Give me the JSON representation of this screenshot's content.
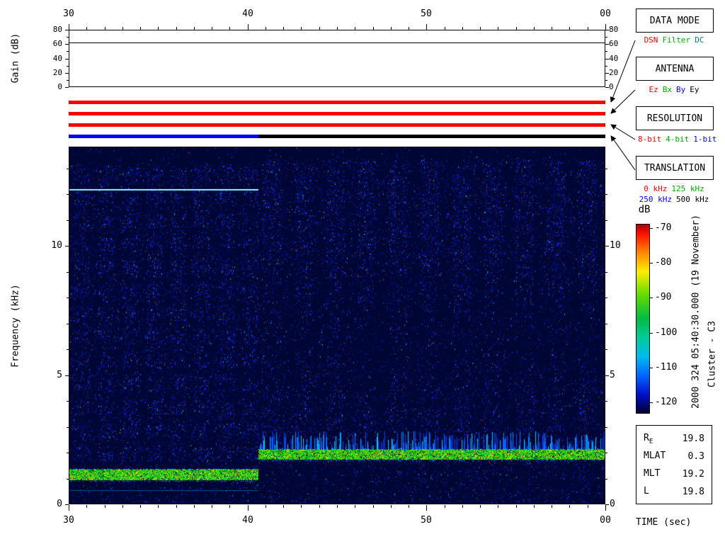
{
  "gain_panel": {
    "ylabel": "Gain (dB)",
    "ticks": [
      0,
      20,
      40,
      60,
      80
    ],
    "minor_ticks": [
      10,
      30,
      50,
      70
    ],
    "range": [
      0,
      80
    ],
    "trace_value_db": 62
  },
  "time_axis": {
    "xlabel": "TIME (sec)",
    "labels": [
      "30",
      "40",
      "50",
      "00"
    ],
    "minor_ticks_per_interval": 10
  },
  "freq_axis": {
    "ylabel": "Frequency (kHz)",
    "major_ticks": [
      0,
      5,
      10
    ],
    "minor_step_khz": 1,
    "range": [
      0,
      13.85
    ]
  },
  "status_bars": {
    "bars": [
      {
        "name": "data-mode-bar",
        "segments": [
          {
            "frac_from": 0,
            "frac_to": 1,
            "color": "#ff0000",
            "value": "DSN"
          }
        ]
      },
      {
        "name": "antenna-bar",
        "segments": [
          {
            "frac_from": 0,
            "frac_to": 1,
            "color": "#ff0000",
            "value": "Ez"
          }
        ]
      },
      {
        "name": "resolution-bar",
        "segments": [
          {
            "frac_from": 0,
            "frac_to": 1,
            "color": "#ff0000",
            "value": "8-bit"
          }
        ]
      },
      {
        "name": "translation-bar",
        "segments": [
          {
            "frac_from": 0,
            "frac_to": 0.354,
            "color": "#0000ff",
            "value": "250 kHz"
          },
          {
            "frac_from": 0.354,
            "frac_to": 1,
            "color": "#000000",
            "value": "500 kHz"
          }
        ]
      }
    ]
  },
  "legend_boxes": [
    {
      "title": "DATA MODE",
      "rows": [
        [
          {
            "text": "DSN",
            "color": "#ff0000"
          },
          {
            "text": "Filter",
            "color": "#00aa00"
          },
          {
            "text": "DC",
            "color": "#007f9f"
          }
        ]
      ]
    },
    {
      "title": "ANTENNA",
      "rows": [
        [
          {
            "text": "Ez",
            "color": "#ff0000"
          },
          {
            "text": "Bx",
            "color": "#00aa00"
          },
          {
            "text": "By",
            "color": "#0000ff"
          },
          {
            "text": "Ey",
            "color": "#000000"
          }
        ]
      ]
    },
    {
      "title": "RESOLUTION",
      "rows": [
        [
          {
            "text": "8-bit",
            "color": "#ff0000"
          },
          {
            "text": "4-bit",
            "color": "#00aa00"
          },
          {
            "text": "1-bit",
            "color": "#0000ff"
          }
        ]
      ]
    },
    {
      "title": "TRANSLATION",
      "rows": [
        [
          {
            "text": "0 kHz",
            "color": "#ff0000"
          },
          {
            "text": "125 kHz",
            "color": "#00aa00"
          }
        ],
        [
          {
            "text": "250 kHz",
            "color": "#0000ff"
          },
          {
            "text": "500 kHz",
            "color": "#000000"
          }
        ]
      ]
    }
  ],
  "colorbar": {
    "label": "dB",
    "ticks": [
      "-70",
      "-80",
      "-90",
      "-100",
      "-110",
      "-120"
    ],
    "stops": [
      {
        "at": 0.0,
        "color": "#aa0000"
      },
      {
        "at": 0.05,
        "color": "#ff1100"
      },
      {
        "at": 0.15,
        "color": "#ff8800"
      },
      {
        "at": 0.25,
        "color": "#ffee00"
      },
      {
        "at": 0.37,
        "color": "#66dd00"
      },
      {
        "at": 0.5,
        "color": "#00bb44"
      },
      {
        "at": 0.6,
        "color": "#00cc99"
      },
      {
        "at": 0.7,
        "color": "#00bbee"
      },
      {
        "at": 0.8,
        "color": "#0066ff"
      },
      {
        "at": 0.9,
        "color": "#0011cc"
      },
      {
        "at": 1.0,
        "color": "#000033"
      }
    ]
  },
  "side_text": {
    "datetime": "2000 324 05:40:30.000 (19 November)",
    "spacecraft": "Cluster - C3"
  },
  "ephemeris": {
    "rows": [
      {
        "label": "R",
        "sub": "E",
        "value": "19.8"
      },
      {
        "label": "MLAT",
        "sub": "",
        "value": "0.3"
      },
      {
        "label": "MLT",
        "sub": "",
        "value": "19.2"
      },
      {
        "label": "L",
        "sub": "",
        "value": "19.8"
      }
    ]
  },
  "chart_data": {
    "type": "heatmap",
    "title": "Cluster - C3 wideband spectrogram",
    "date": "2000 324 (19 November)",
    "start_time": "05:40:30.000",
    "duration_sec": 30,
    "x": {
      "label": "TIME (sec)",
      "tick_labels": [
        "30",
        "40",
        "50",
        "00"
      ],
      "tick_interval_sec": 10
    },
    "y": {
      "label": "Frequency (kHz)",
      "range_khz": [
        0,
        13.85
      ],
      "major_ticks_khz": [
        0,
        5,
        10
      ]
    },
    "z": {
      "label": "dB",
      "max_db": -70,
      "min_db": -120
    },
    "background_color": "#000633",
    "mode_change_frac": 0.354,
    "gain_trace": {
      "range_db": [
        0,
        80
      ],
      "flat_value_db": 62
    },
    "status": {
      "data_mode": "DSN",
      "antenna": "Ez",
      "resolution": "8-bit",
      "translation_before": "250 kHz",
      "translation_after": "500 kHz"
    },
    "features": [
      {
        "name": "narrowband-tone",
        "freq_khz": 12.2,
        "time_frac": [
          0,
          0.354
        ],
        "color": "#7fd9ff"
      },
      {
        "name": "intense-band-1",
        "freq_khz": [
          0.92,
          1.35
        ],
        "time_frac": [
          0,
          0.354
        ],
        "peak_db": -70
      },
      {
        "name": "intense-band-2",
        "freq_khz": [
          1.72,
          2.12
        ],
        "time_frac": [
          0.354,
          1
        ],
        "peak_db": -70
      },
      {
        "name": "comb-striations",
        "freq_khz": [
          2.05,
          2.8
        ],
        "time_frac": [
          0.354,
          1
        ]
      },
      {
        "name": "vertical-striations",
        "count": 11,
        "freq_khz": [
          0.5,
          13.5
        ],
        "time_frac": [
          0.354,
          1
        ]
      },
      {
        "name": "faint-line",
        "freq_khz": 0.55,
        "time_frac": [
          0,
          0.354
        ]
      }
    ]
  }
}
